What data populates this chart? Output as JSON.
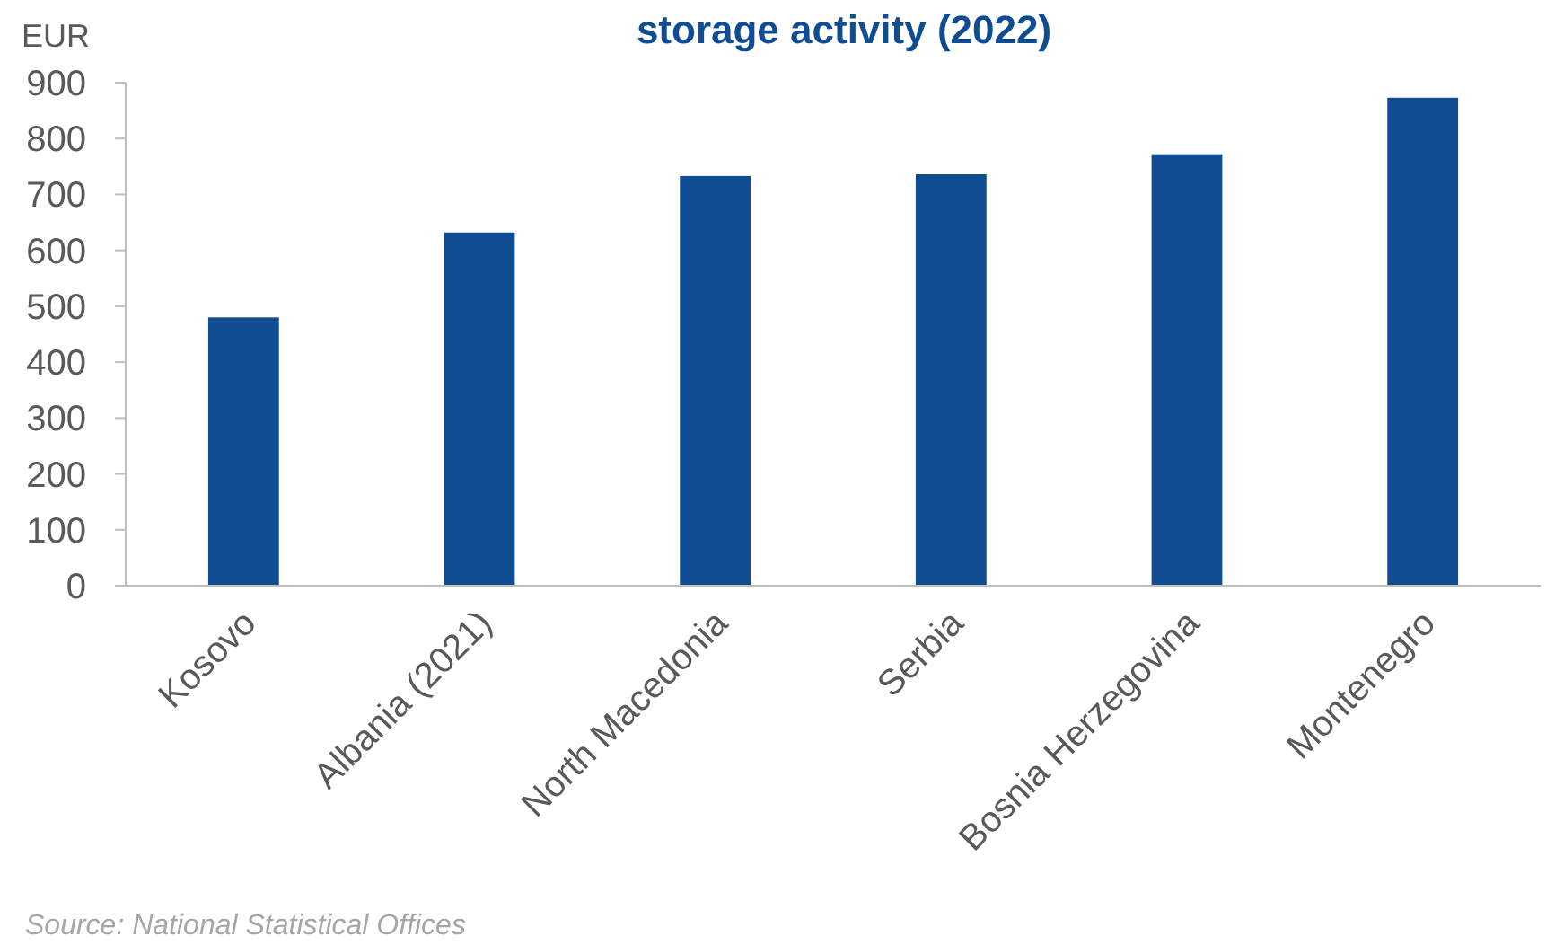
{
  "chart_data": {
    "type": "bar",
    "title": "storage activity (2022)",
    "ylabel": "EUR",
    "categories": [
      "Kosovo",
      "Albania (2021)",
      "North Macedonia",
      "Serbia",
      "Bosnia Herzegovina",
      "Montenegro"
    ],
    "values": [
      480,
      632,
      733,
      736,
      772,
      873
    ],
    "color": "#104c91",
    "ylim": [
      0,
      900
    ],
    "yticks": [
      0,
      100,
      200,
      300,
      400,
      500,
      600,
      700,
      800,
      900
    ],
    "grid": false,
    "annotations": [
      "Source:  National Statistical Offices"
    ]
  }
}
